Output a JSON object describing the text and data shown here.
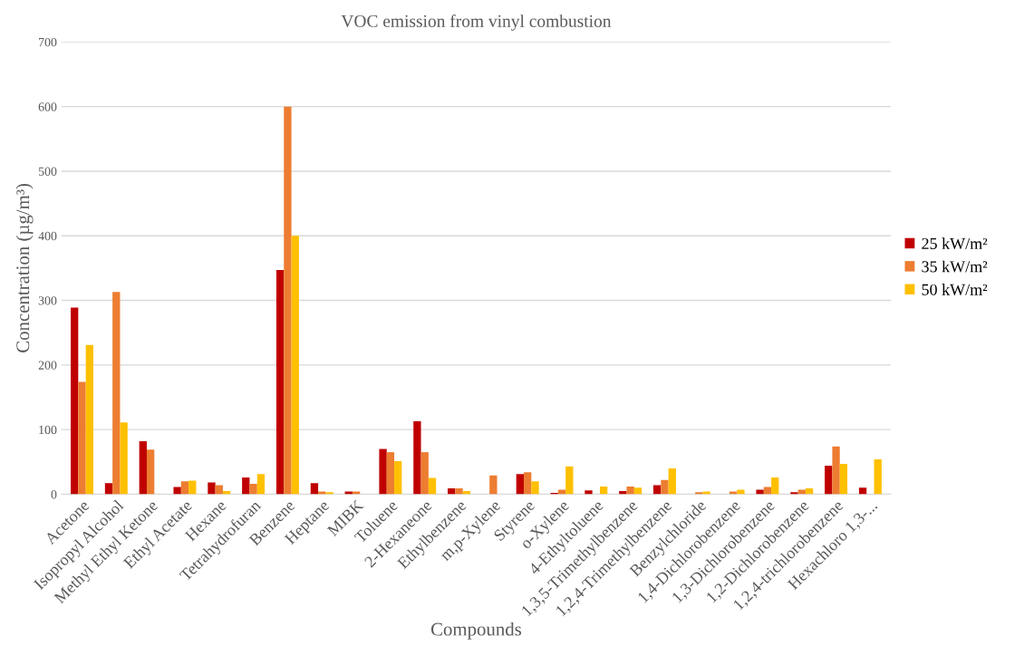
{
  "chart_data": {
    "type": "bar",
    "title": "VOC emission from vinyl combustion",
    "xlabel": "Compounds",
    "ylabel": "Concentration (µg/m³)",
    "categories": [
      "Acetone",
      "Isopropyl Alcohol",
      "Methyl Ethyl Ketone",
      "Ethyl Acetate",
      "Hexane",
      "Tetrahydrofuran",
      "Benzene",
      "Heptane",
      "MIBK",
      "Toluene",
      "2-Hexaneone",
      "Ethylbenzene",
      "m,p-Xylene",
      "Styrene",
      "o-Xylene",
      "4-Ethyltoluene",
      "1,3,5-Trimethylbenzene",
      "1,2,4-Trimethylbenzene",
      "Benzylchloride",
      "1,4-Dichlorobenzene",
      "1,3-Dichlorobenzene",
      "1,2-Dichlorobenzene",
      "1,2,4-trichlorobenzene",
      "Hexachloro 1,3-..."
    ],
    "series": [
      {
        "name": "25 kW/m²",
        "color": "#c00000",
        "values": [
          289,
          17,
          82,
          11,
          18,
          26,
          347,
          17,
          4,
          70,
          113,
          9,
          null,
          31,
          2,
          6,
          5,
          14,
          null,
          null,
          7,
          3,
          44,
          10
        ]
      },
      {
        "name": "35 kW/m²",
        "color": "#ed7d31",
        "values": [
          174,
          313,
          69,
          20,
          14,
          16,
          600,
          4,
          4,
          65,
          65,
          9,
          29,
          34,
          7,
          null,
          12,
          22,
          3,
          4,
          11,
          7,
          74,
          null
        ]
      },
      {
        "name": "50 kW/m²",
        "color": "#ffc000",
        "values": [
          231,
          111,
          null,
          21,
          5,
          31,
          400,
          3,
          null,
          51,
          25,
          5,
          null,
          20,
          43,
          12,
          10,
          40,
          4,
          7,
          26,
          9,
          47,
          54
        ]
      }
    ],
    "ylim": [
      0,
      700
    ],
    "yticks": [
      0,
      100,
      200,
      300,
      400,
      500,
      600,
      700
    ],
    "grid": "y",
    "legend": "right"
  }
}
